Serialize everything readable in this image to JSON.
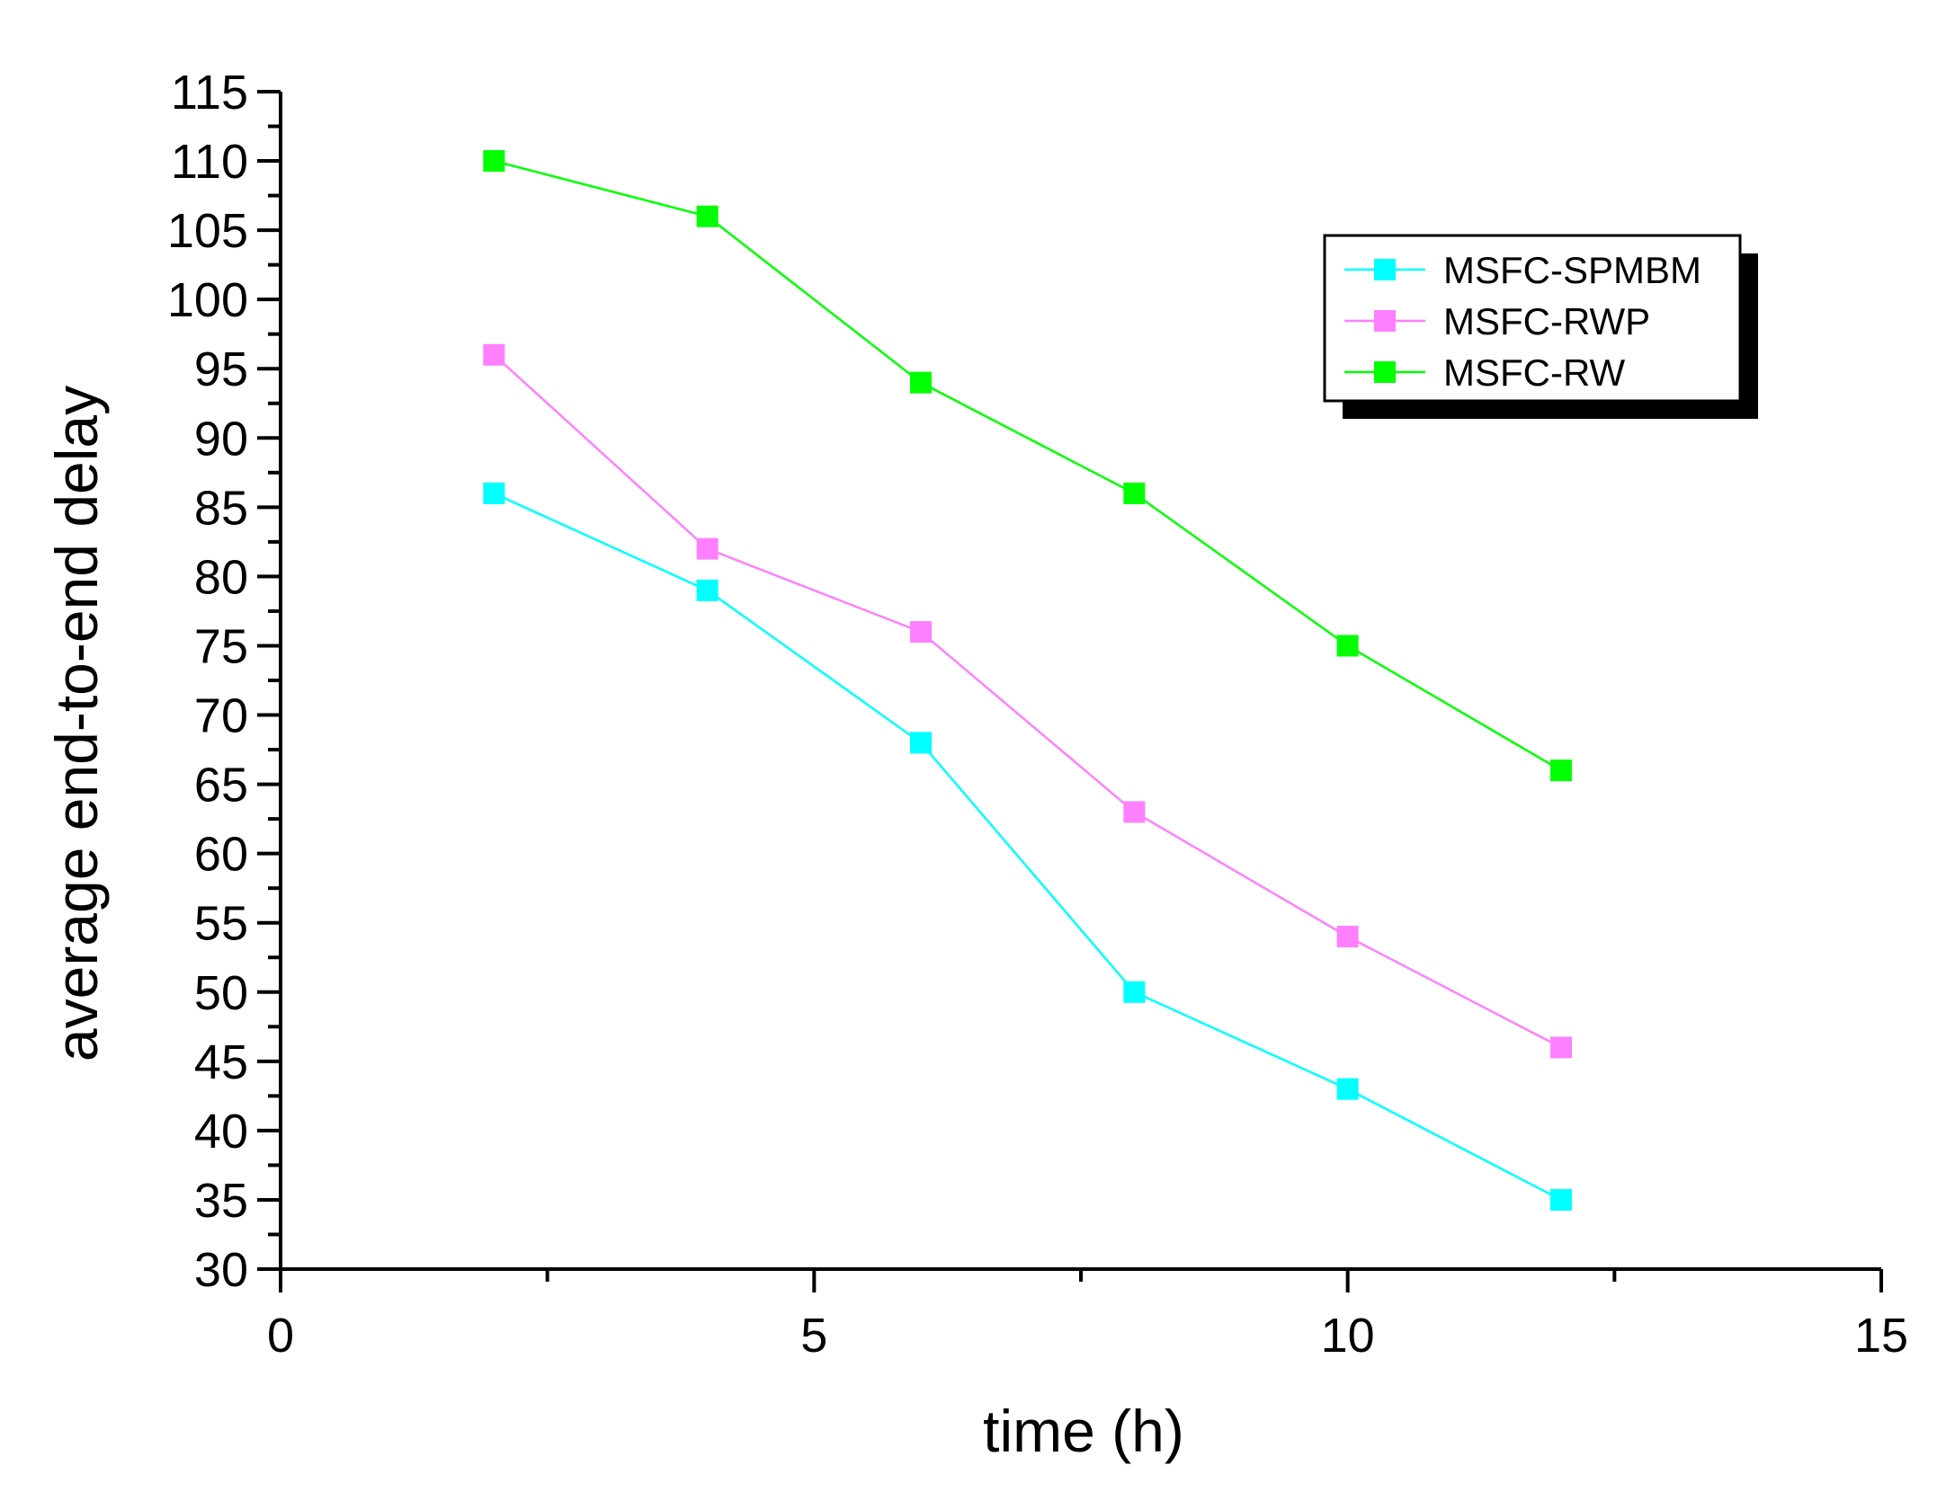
{
  "chart_data": {
    "type": "line",
    "title": "",
    "xlabel": "time (h)",
    "ylabel": "average end-to-end delay",
    "xlim": [
      0,
      15
    ],
    "ylim": [
      30,
      115
    ],
    "xticks": [
      0,
      5,
      10,
      15
    ],
    "yticks": [
      30,
      35,
      40,
      45,
      50,
      55,
      60,
      65,
      70,
      75,
      80,
      85,
      90,
      95,
      100,
      105,
      110,
      115
    ],
    "grid": false,
    "legend_position": "top-right",
    "x": [
      2,
      4,
      6,
      8,
      10,
      12
    ],
    "series": [
      {
        "name": "MSFC-SPMBM",
        "color": "#00ffff",
        "values": [
          86,
          79,
          68,
          50,
          43,
          35
        ]
      },
      {
        "name": "MSFC-RWP",
        "color": "#ff80ff",
        "values": [
          96,
          82,
          76,
          63,
          54,
          46
        ]
      },
      {
        "name": "MSFC-RW",
        "color": "#00ff00",
        "values": [
          110,
          106,
          94,
          86,
          75,
          66
        ]
      }
    ]
  }
}
